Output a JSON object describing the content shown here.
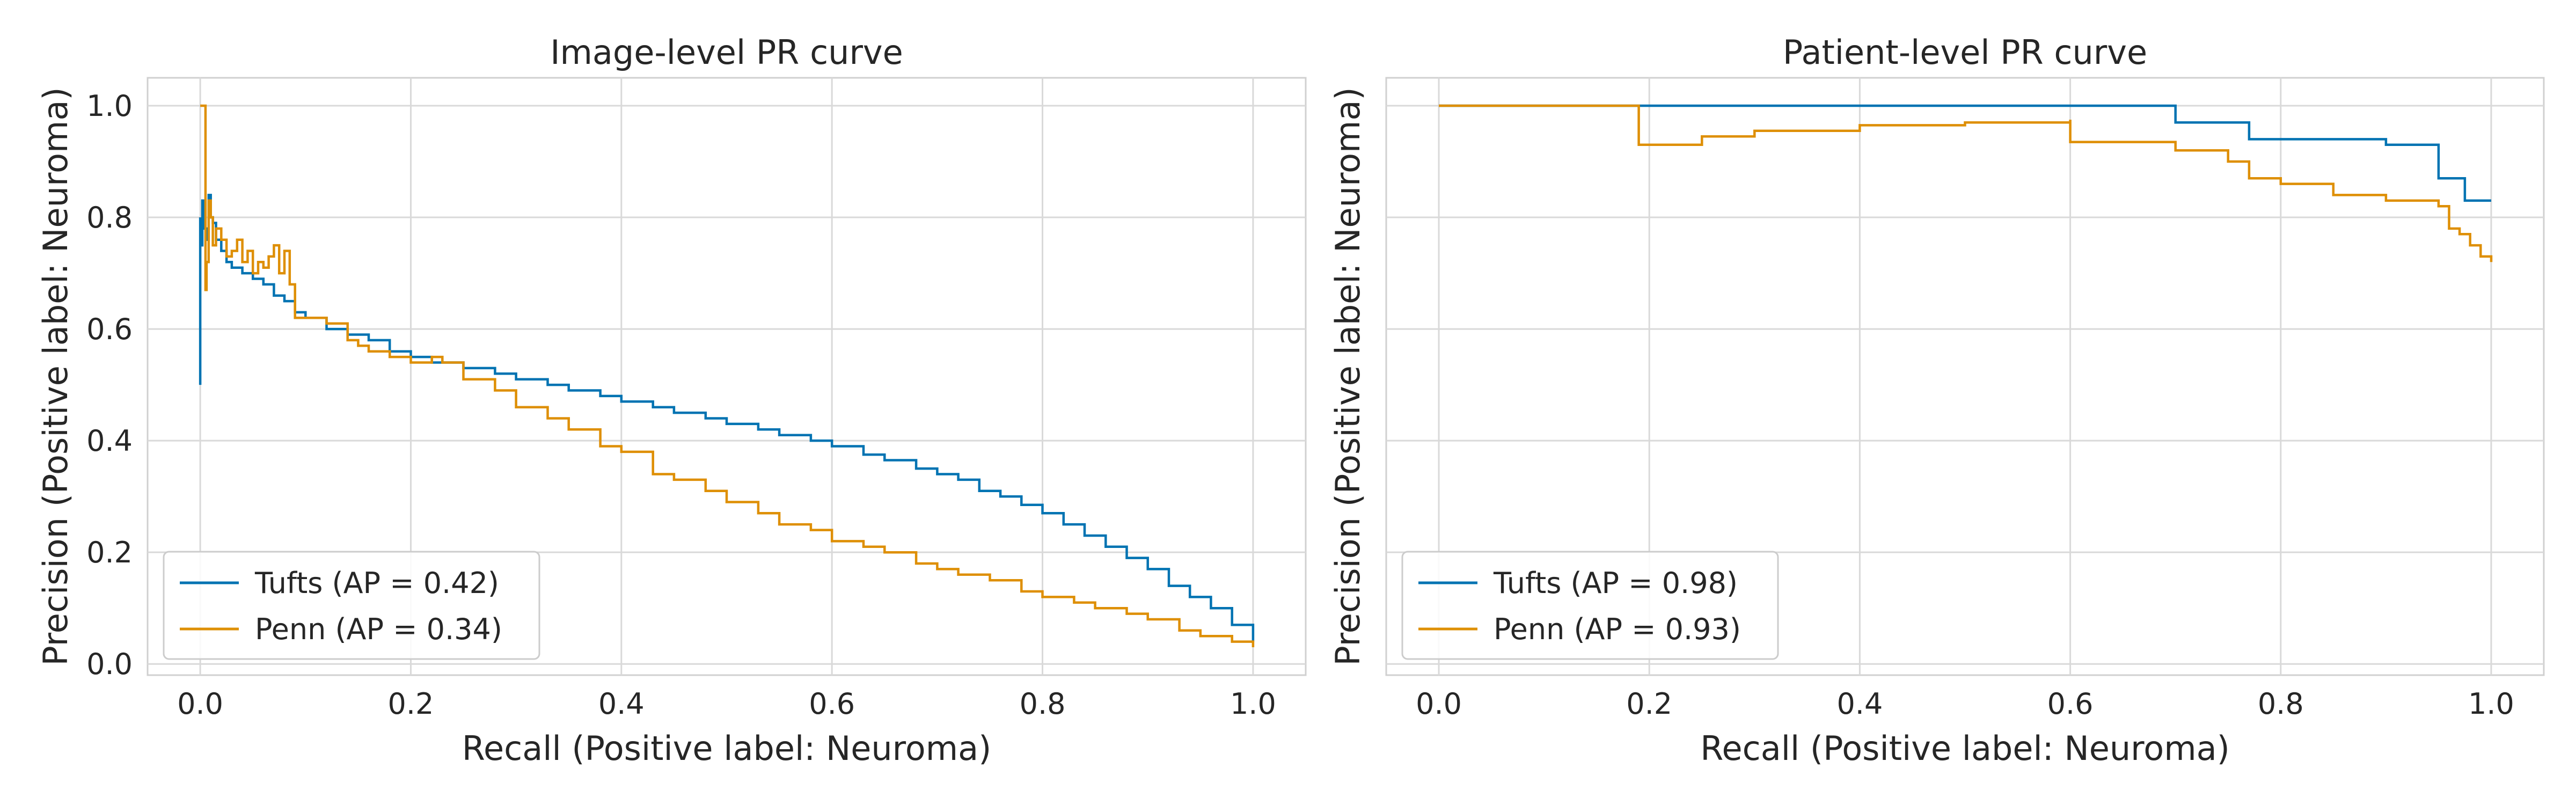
{
  "chart_data": [
    {
      "type": "line",
      "title": "Image-level PR curve",
      "xlabel": "Recall (Positive label: Neuroma)",
      "ylabel": "Precision (Positive label: Neuroma)",
      "xlim": [
        -0.05,
        1.05
      ],
      "ylim": [
        -0.02,
        1.05
      ],
      "xticks": [
        "0.0",
        "0.2",
        "0.4",
        "0.6",
        "0.8",
        "1.0"
      ],
      "yticks": [
        "0.0",
        "0.2",
        "0.4",
        "0.6",
        "0.8",
        "1.0"
      ],
      "grid": true,
      "legend_position": "lower-left",
      "series": [
        {
          "name": "Tufts (AP = 0.42)",
          "color": "#0173b2",
          "step": true,
          "x": [
            0.0,
            0.0,
            0.0,
            0.002,
            0.004,
            0.006,
            0.008,
            0.01,
            0.012,
            0.015,
            0.02,
            0.025,
            0.03,
            0.04,
            0.05,
            0.06,
            0.07,
            0.08,
            0.09,
            0.1,
            0.12,
            0.14,
            0.16,
            0.18,
            0.2,
            0.22,
            0.25,
            0.28,
            0.3,
            0.33,
            0.35,
            0.38,
            0.4,
            0.43,
            0.45,
            0.48,
            0.5,
            0.53,
            0.55,
            0.58,
            0.6,
            0.63,
            0.65,
            0.68,
            0.7,
            0.72,
            0.74,
            0.76,
            0.78,
            0.8,
            0.82,
            0.84,
            0.86,
            0.88,
            0.9,
            0.92,
            0.94,
            0.96,
            0.98,
            1.0
          ],
          "y": [
            0.5,
            0.8,
            0.75,
            0.83,
            0.78,
            0.76,
            0.84,
            0.8,
            0.79,
            0.76,
            0.74,
            0.72,
            0.71,
            0.7,
            0.69,
            0.68,
            0.66,
            0.65,
            0.63,
            0.62,
            0.6,
            0.59,
            0.58,
            0.56,
            0.55,
            0.54,
            0.53,
            0.52,
            0.51,
            0.5,
            0.49,
            0.48,
            0.47,
            0.46,
            0.45,
            0.44,
            0.43,
            0.42,
            0.41,
            0.4,
            0.39,
            0.375,
            0.365,
            0.35,
            0.34,
            0.33,
            0.31,
            0.3,
            0.285,
            0.27,
            0.25,
            0.23,
            0.21,
            0.19,
            0.17,
            0.14,
            0.12,
            0.1,
            0.07,
            0.04
          ]
        },
        {
          "name": "Penn (AP = 0.34)",
          "color": "#de8f05",
          "step": true,
          "x": [
            0.0,
            0.003,
            0.005,
            0.006,
            0.008,
            0.01,
            0.012,
            0.015,
            0.02,
            0.025,
            0.03,
            0.035,
            0.04,
            0.045,
            0.05,
            0.055,
            0.06,
            0.065,
            0.07,
            0.075,
            0.08,
            0.085,
            0.09,
            0.1,
            0.12,
            0.14,
            0.15,
            0.16,
            0.18,
            0.2,
            0.22,
            0.23,
            0.25,
            0.28,
            0.3,
            0.33,
            0.35,
            0.38,
            0.4,
            0.43,
            0.45,
            0.48,
            0.5,
            0.53,
            0.55,
            0.58,
            0.6,
            0.63,
            0.65,
            0.68,
            0.7,
            0.72,
            0.75,
            0.78,
            0.8,
            0.83,
            0.85,
            0.88,
            0.9,
            0.93,
            0.95,
            0.98,
            1.0
          ],
          "y": [
            1.0,
            1.0,
            0.67,
            0.72,
            0.83,
            0.8,
            0.75,
            0.78,
            0.76,
            0.73,
            0.74,
            0.76,
            0.72,
            0.74,
            0.7,
            0.72,
            0.71,
            0.73,
            0.75,
            0.7,
            0.74,
            0.68,
            0.62,
            0.62,
            0.61,
            0.58,
            0.57,
            0.56,
            0.55,
            0.54,
            0.55,
            0.54,
            0.51,
            0.49,
            0.46,
            0.44,
            0.42,
            0.39,
            0.38,
            0.34,
            0.33,
            0.31,
            0.29,
            0.27,
            0.25,
            0.24,
            0.22,
            0.21,
            0.2,
            0.18,
            0.17,
            0.16,
            0.15,
            0.13,
            0.12,
            0.11,
            0.1,
            0.09,
            0.08,
            0.06,
            0.05,
            0.04,
            0.03
          ]
        }
      ]
    },
    {
      "type": "line",
      "title": "Patient-level PR curve",
      "xlabel": "Recall (Positive label: Neuroma)",
      "ylabel": "Precision (Positive label: Neuroma)",
      "xlim": [
        -0.05,
        1.05
      ],
      "ylim": [
        -0.02,
        1.05
      ],
      "xticks": [
        "0.0",
        "0.2",
        "0.4",
        "0.6",
        "0.8",
        "1.0"
      ],
      "yticks": [],
      "grid": true,
      "legend_position": "lower-left",
      "series": [
        {
          "name": "Tufts (AP = 0.98)",
          "color": "#0173b2",
          "step": true,
          "x": [
            0.0,
            0.67,
            0.7,
            0.77,
            0.9,
            0.95,
            0.975,
            1.0
          ],
          "y": [
            1.0,
            1.0,
            0.97,
            0.94,
            0.93,
            0.87,
            0.83,
            0.83
          ]
        },
        {
          "name": "Penn (AP = 0.93)",
          "color": "#de8f05",
          "step": true,
          "x": [
            0.0,
            0.19,
            0.19,
            0.25,
            0.3,
            0.4,
            0.5,
            0.6,
            0.6,
            0.7,
            0.75,
            0.77,
            0.8,
            0.85,
            0.9,
            0.95,
            0.96,
            0.97,
            0.98,
            0.99,
            1.0
          ],
          "y": [
            1.0,
            1.0,
            0.93,
            0.945,
            0.955,
            0.965,
            0.97,
            0.975,
            0.935,
            0.92,
            0.9,
            0.87,
            0.86,
            0.84,
            0.83,
            0.82,
            0.78,
            0.77,
            0.75,
            0.73,
            0.72
          ]
        }
      ]
    }
  ]
}
